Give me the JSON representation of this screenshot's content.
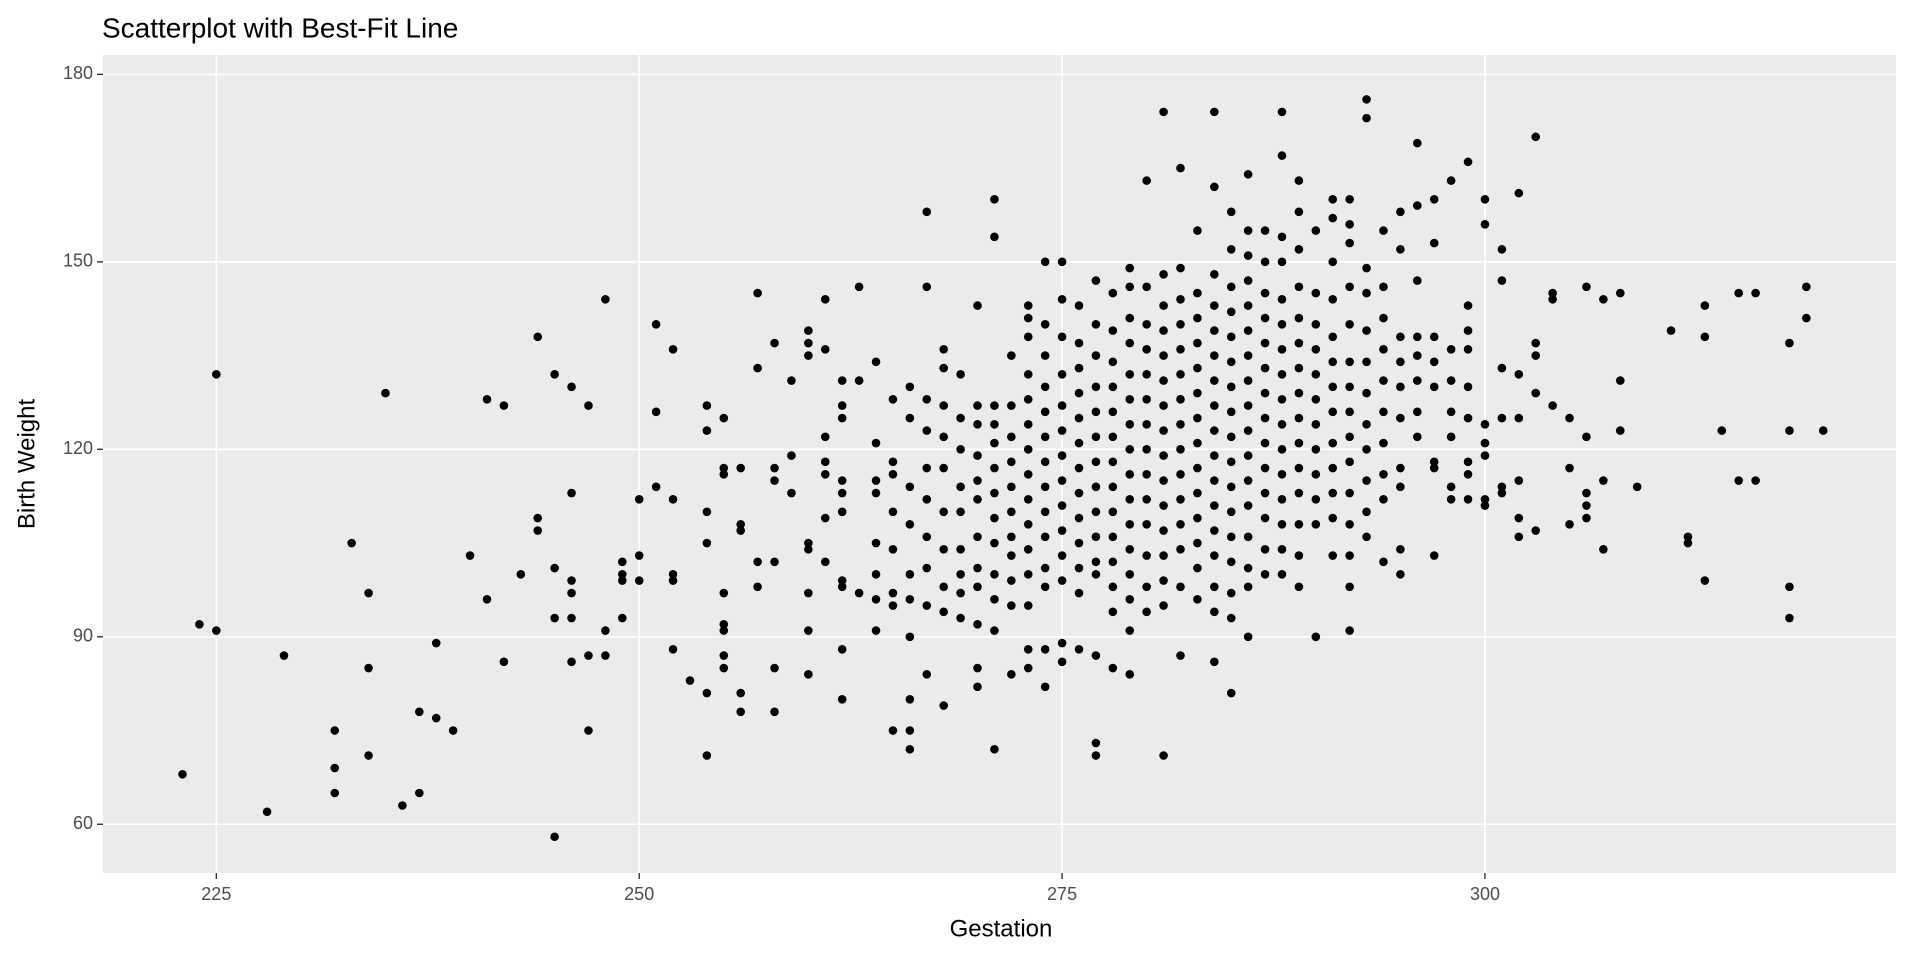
{
  "chart_data": {
    "type": "scatter",
    "title": "Scatterplot with Best-Fit Line",
    "x_label": "Gestation",
    "y_label": "Birth Weight",
    "color": "#000000",
    "grid": true,
    "xlim": [
      218.3,
      324.3
    ],
    "ylim": [
      52.2,
      183.1
    ],
    "xticks": [
      225,
      250,
      275,
      300
    ],
    "yticks": [
      60,
      90,
      120,
      150,
      180
    ],
    "x": [
      223,
      224,
      225,
      225,
      228,
      229,
      232,
      232,
      232,
      233,
      234,
      234,
      234,
      235,
      236,
      237,
      237,
      238,
      238,
      239,
      240,
      241,
      241,
      242,
      242,
      243,
      244,
      244,
      244,
      245,
      245,
      245,
      245,
      246,
      246,
      246,
      246,
      246,
      246,
      247,
      247,
      247,
      248,
      248,
      248,
      249,
      249,
      249,
      249,
      250,
      250,
      250,
      251,
      251,
      251,
      252,
      252,
      252,
      252,
      252,
      253,
      254,
      254,
      254,
      254,
      254,
      254,
      255,
      255,
      255,
      255,
      255,
      255,
      255,
      255,
      256,
      256,
      256,
      256,
      256,
      257,
      257,
      257,
      257,
      258,
      258,
      258,
      258,
      258,
      258,
      259,
      259,
      259,
      260,
      260,
      260,
      260,
      260,
      260,
      260,
      260,
      261,
      261,
      261,
      261,
      261,
      261,
      261,
      262,
      262,
      262,
      262,
      262,
      262,
      262,
      262,
      262,
      262,
      263,
      263,
      263,
      264,
      264,
      264,
      264,
      264,
      264,
      264,
      264,
      265,
      265,
      265,
      265,
      265,
      265,
      265,
      265,
      266,
      266,
      266,
      266,
      266,
      266,
      266,
      266,
      266,
      266,
      267,
      267,
      267,
      267,
      267,
      267,
      267,
      267,
      267,
      267,
      268,
      268,
      268,
      268,
      268,
      268,
      268,
      268,
      268,
      268,
      269,
      269,
      269,
      269,
      269,
      269,
      269,
      269,
      269,
      270,
      270,
      270,
      270,
      270,
      270,
      270,
      270,
      270,
      270,
      270,
      270,
      271,
      271,
      271,
      271,
      271,
      271,
      271,
      271,
      271,
      271,
      271,
      271,
      271,
      272,
      272,
      272,
      272,
      272,
      272,
      272,
      272,
      272,
      272,
      272,
      273,
      273,
      273,
      273,
      273,
      273,
      273,
      273,
      273,
      273,
      273,
      273,
      273,
      273,
      273,
      274,
      274,
      274,
      274,
      274,
      274,
      274,
      274,
      274,
      274,
      274,
      274,
      274,
      274,
      275,
      275,
      275,
      275,
      275,
      275,
      275,
      275,
      275,
      275,
      275,
      275,
      275,
      275,
      276,
      276,
      276,
      276,
      276,
      276,
      276,
      276,
      276,
      276,
      276,
      276,
      276,
      277,
      277,
      277,
      277,
      277,
      277,
      277,
      277,
      277,
      277,
      277,
      277,
      277,
      277,
      277,
      278,
      278,
      278,
      278,
      278,
      278,
      278,
      278,
      278,
      278,
      278,
      278,
      278,
      278,
      279,
      279,
      279,
      279,
      279,
      279,
      279,
      279,
      279,
      279,
      279,
      279,
      279,
      279,
      279,
      279,
      280,
      280,
      280,
      280,
      280,
      280,
      280,
      280,
      280,
      280,
      280,
      280,
      280,
      280,
      281,
      281,
      281,
      281,
      281,
      281,
      281,
      281,
      281,
      281,
      281,
      281,
      281,
      281,
      281,
      281,
      282,
      282,
      282,
      282,
      282,
      282,
      282,
      282,
      282,
      282,
      282,
      282,
      282,
      282,
      282,
      283,
      283,
      283,
      283,
      283,
      283,
      283,
      283,
      283,
      283,
      283,
      283,
      283,
      283,
      284,
      284,
      284,
      284,
      284,
      284,
      284,
      284,
      284,
      284,
      284,
      284,
      284,
      284,
      284,
      284,
      284,
      285,
      285,
      285,
      285,
      285,
      285,
      285,
      285,
      285,
      285,
      285,
      285,
      285,
      285,
      285,
      285,
      285,
      286,
      286,
      286,
      286,
      286,
      286,
      286,
      286,
      286,
      286,
      286,
      286,
      286,
      286,
      286,
      286,
      286,
      287,
      287,
      287,
      287,
      287,
      287,
      287,
      287,
      287,
      287,
      287,
      287,
      287,
      287,
      288,
      288,
      288,
      288,
      288,
      288,
      288,
      288,
      288,
      288,
      288,
      288,
      288,
      288,
      288,
      288,
      289,
      289,
      289,
      289,
      289,
      289,
      289,
      289,
      289,
      289,
      289,
      289,
      289,
      289,
      289,
      290,
      290,
      290,
      290,
      290,
      290,
      290,
      290,
      290,
      290,
      290,
      290,
      291,
      291,
      291,
      291,
      291,
      291,
      291,
      291,
      291,
      291,
      291,
      291,
      291,
      292,
      292,
      292,
      292,
      292,
      292,
      292,
      292,
      292,
      292,
      292,
      292,
      292,
      292,
      292,
      293,
      293,
      293,
      293,
      293,
      293,
      293,
      293,
      293,
      293,
      293,
      293,
      294,
      294,
      294,
      294,
      294,
      294,
      294,
      294,
      294,
      294,
      295,
      295,
      295,
      295,
      295,
      295,
      295,
      295,
      295,
      295,
      296,
      296,
      296,
      296,
      296,
      296,
      296,
      296,
      297,
      297,
      297,
      297,
      297,
      297,
      297,
      297,
      298,
      298,
      298,
      298,
      298,
      298,
      298,
      299,
      299,
      299,
      299,
      299,
      299,
      299,
      299,
      299,
      300,
      300,
      300,
      300,
      300,
      300,
      300,
      301,
      301,
      301,
      301,
      301,
      301,
      302,
      302,
      302,
      302,
      302,
      302,
      303,
      303,
      303,
      303,
      303,
      304,
      304,
      304,
      305,
      305,
      305,
      306,
      306,
      306,
      306,
      306,
      307,
      307,
      307,
      308,
      308,
      308,
      309,
      311,
      312,
      312,
      313,
      313,
      313,
      314,
      315,
      315,
      316,
      316,
      318,
      318,
      318,
      318,
      319,
      319,
      320
    ],
    "values": [
      68,
      92,
      132,
      91,
      62,
      87,
      75,
      69,
      65,
      105,
      97,
      85,
      71,
      129,
      63,
      78,
      65,
      89,
      77,
      75,
      103,
      128,
      96,
      127,
      86,
      100,
      138,
      109,
      107,
      132,
      101,
      93,
      58,
      130,
      113,
      99,
      97,
      93,
      86,
      127,
      87,
      75,
      144,
      91,
      87,
      102,
      100,
      99,
      93,
      112,
      103,
      99,
      140,
      126,
      114,
      136,
      112,
      100,
      99,
      88,
      83,
      127,
      123,
      110,
      105,
      81,
      71,
      125,
      117,
      116,
      97,
      92,
      91,
      87,
      85,
      117,
      108,
      107,
      81,
      78,
      145,
      133,
      102,
      98,
      137,
      117,
      115,
      102,
      85,
      78,
      131,
      119,
      113,
      139,
      137,
      135,
      105,
      104,
      97,
      91,
      84,
      144,
      136,
      122,
      118,
      116,
      109,
      102,
      131,
      127,
      125,
      115,
      113,
      110,
      99,
      98,
      88,
      80,
      146,
      131,
      97,
      134,
      121,
      115,
      113,
      105,
      100,
      96,
      91,
      128,
      118,
      116,
      110,
      104,
      97,
      95,
      75,
      130,
      125,
      114,
      108,
      100,
      96,
      90,
      80,
      75,
      72,
      158,
      146,
      128,
      123,
      117,
      112,
      106,
      101,
      95,
      84,
      136,
      133,
      127,
      122,
      117,
      110,
      104,
      98,
      94,
      79,
      132,
      125,
      120,
      114,
      110,
      104,
      100,
      97,
      93,
      143,
      127,
      124,
      119,
      115,
      112,
      106,
      101,
      98,
      92,
      85,
      82,
      160,
      154,
      127,
      124,
      121,
      117,
      113,
      109,
      105,
      100,
      96,
      91,
      72,
      135,
      127,
      122,
      118,
      114,
      110,
      106,
      103,
      99,
      95,
      84,
      143,
      141,
      138,
      132,
      128,
      124,
      120,
      116,
      112,
      108,
      104,
      100,
      95,
      88,
      85,
      150,
      140,
      135,
      130,
      126,
      122,
      118,
      114,
      110,
      106,
      101,
      98,
      88,
      82,
      150,
      144,
      138,
      132,
      127,
      123,
      119,
      115,
      111,
      107,
      103,
      99,
      89,
      86,
      143,
      137,
      133,
      129,
      125,
      121,
      117,
      113,
      109,
      105,
      101,
      97,
      88,
      147,
      140,
      135,
      130,
      126,
      122,
      118,
      114,
      110,
      106,
      102,
      100,
      87,
      73,
      71,
      145,
      139,
      134,
      130,
      126,
      122,
      118,
      114,
      110,
      106,
      102,
      98,
      94,
      85,
      149,
      146,
      141,
      137,
      132,
      128,
      124,
      120,
      116,
      112,
      108,
      104,
      100,
      96,
      91,
      84,
      163,
      146,
      140,
      136,
      132,
      128,
      124,
      120,
      116,
      112,
      108,
      103,
      98,
      94,
      174,
      148,
      143,
      139,
      135,
      131,
      127,
      123,
      119,
      115,
      111,
      107,
      103,
      99,
      95,
      71,
      165,
      149,
      144,
      140,
      136,
      132,
      128,
      124,
      120,
      116,
      112,
      108,
      104,
      98,
      87,
      155,
      145,
      141,
      137,
      133,
      129,
      125,
      121,
      117,
      113,
      109,
      105,
      101,
      96,
      174,
      162,
      148,
      143,
      139,
      135,
      131,
      127,
      123,
      119,
      115,
      111,
      107,
      103,
      98,
      94,
      86,
      158,
      152,
      146,
      142,
      138,
      134,
      130,
      126,
      122,
      118,
      114,
      110,
      106,
      102,
      97,
      93,
      81,
      164,
      155,
      151,
      147,
      143,
      139,
      135,
      131,
      127,
      123,
      119,
      115,
      111,
      106,
      101,
      98,
      90,
      155,
      150,
      145,
      141,
      137,
      133,
      129,
      125,
      121,
      117,
      113,
      109,
      104,
      100,
      174,
      167,
      154,
      150,
      144,
      140,
      136,
      132,
      128,
      124,
      120,
      116,
      112,
      108,
      104,
      100,
      163,
      158,
      152,
      146,
      141,
      137,
      133,
      129,
      125,
      121,
      117,
      113,
      108,
      103,
      98,
      155,
      145,
      140,
      136,
      132,
      128,
      124,
      120,
      116,
      112,
      108,
      90,
      160,
      157,
      150,
      144,
      138,
      134,
      130,
      126,
      121,
      117,
      113,
      109,
      103,
      160,
      156,
      153,
      146,
      140,
      134,
      130,
      126,
      122,
      118,
      113,
      108,
      103,
      98,
      91,
      176,
      173,
      149,
      145,
      139,
      134,
      129,
      124,
      120,
      115,
      110,
      106,
      155,
      146,
      141,
      136,
      131,
      126,
      121,
      116,
      112,
      102,
      158,
      152,
      138,
      134,
      130,
      125,
      117,
      114,
      104,
      100,
      169,
      159,
      147,
      138,
      135,
      131,
      126,
      122,
      160,
      153,
      138,
      134,
      130,
      118,
      117,
      103,
      163,
      136,
      131,
      126,
      122,
      114,
      112,
      166,
      143,
      139,
      136,
      130,
      125,
      118,
      116,
      112,
      160,
      156,
      124,
      121,
      119,
      112,
      111,
      152,
      147,
      133,
      125,
      114,
      113,
      161,
      132,
      125,
      115,
      109,
      106,
      170,
      137,
      135,
      129,
      107,
      145,
      144,
      127,
      125,
      117,
      108,
      146,
      122,
      113,
      111,
      109,
      144,
      115,
      104,
      145,
      131,
      123,
      114,
      139,
      106,
      105,
      143,
      138,
      99,
      123,
      145,
      115,
      145,
      115,
      137,
      123,
      98,
      93,
      146,
      141,
      123
    ]
  }
}
